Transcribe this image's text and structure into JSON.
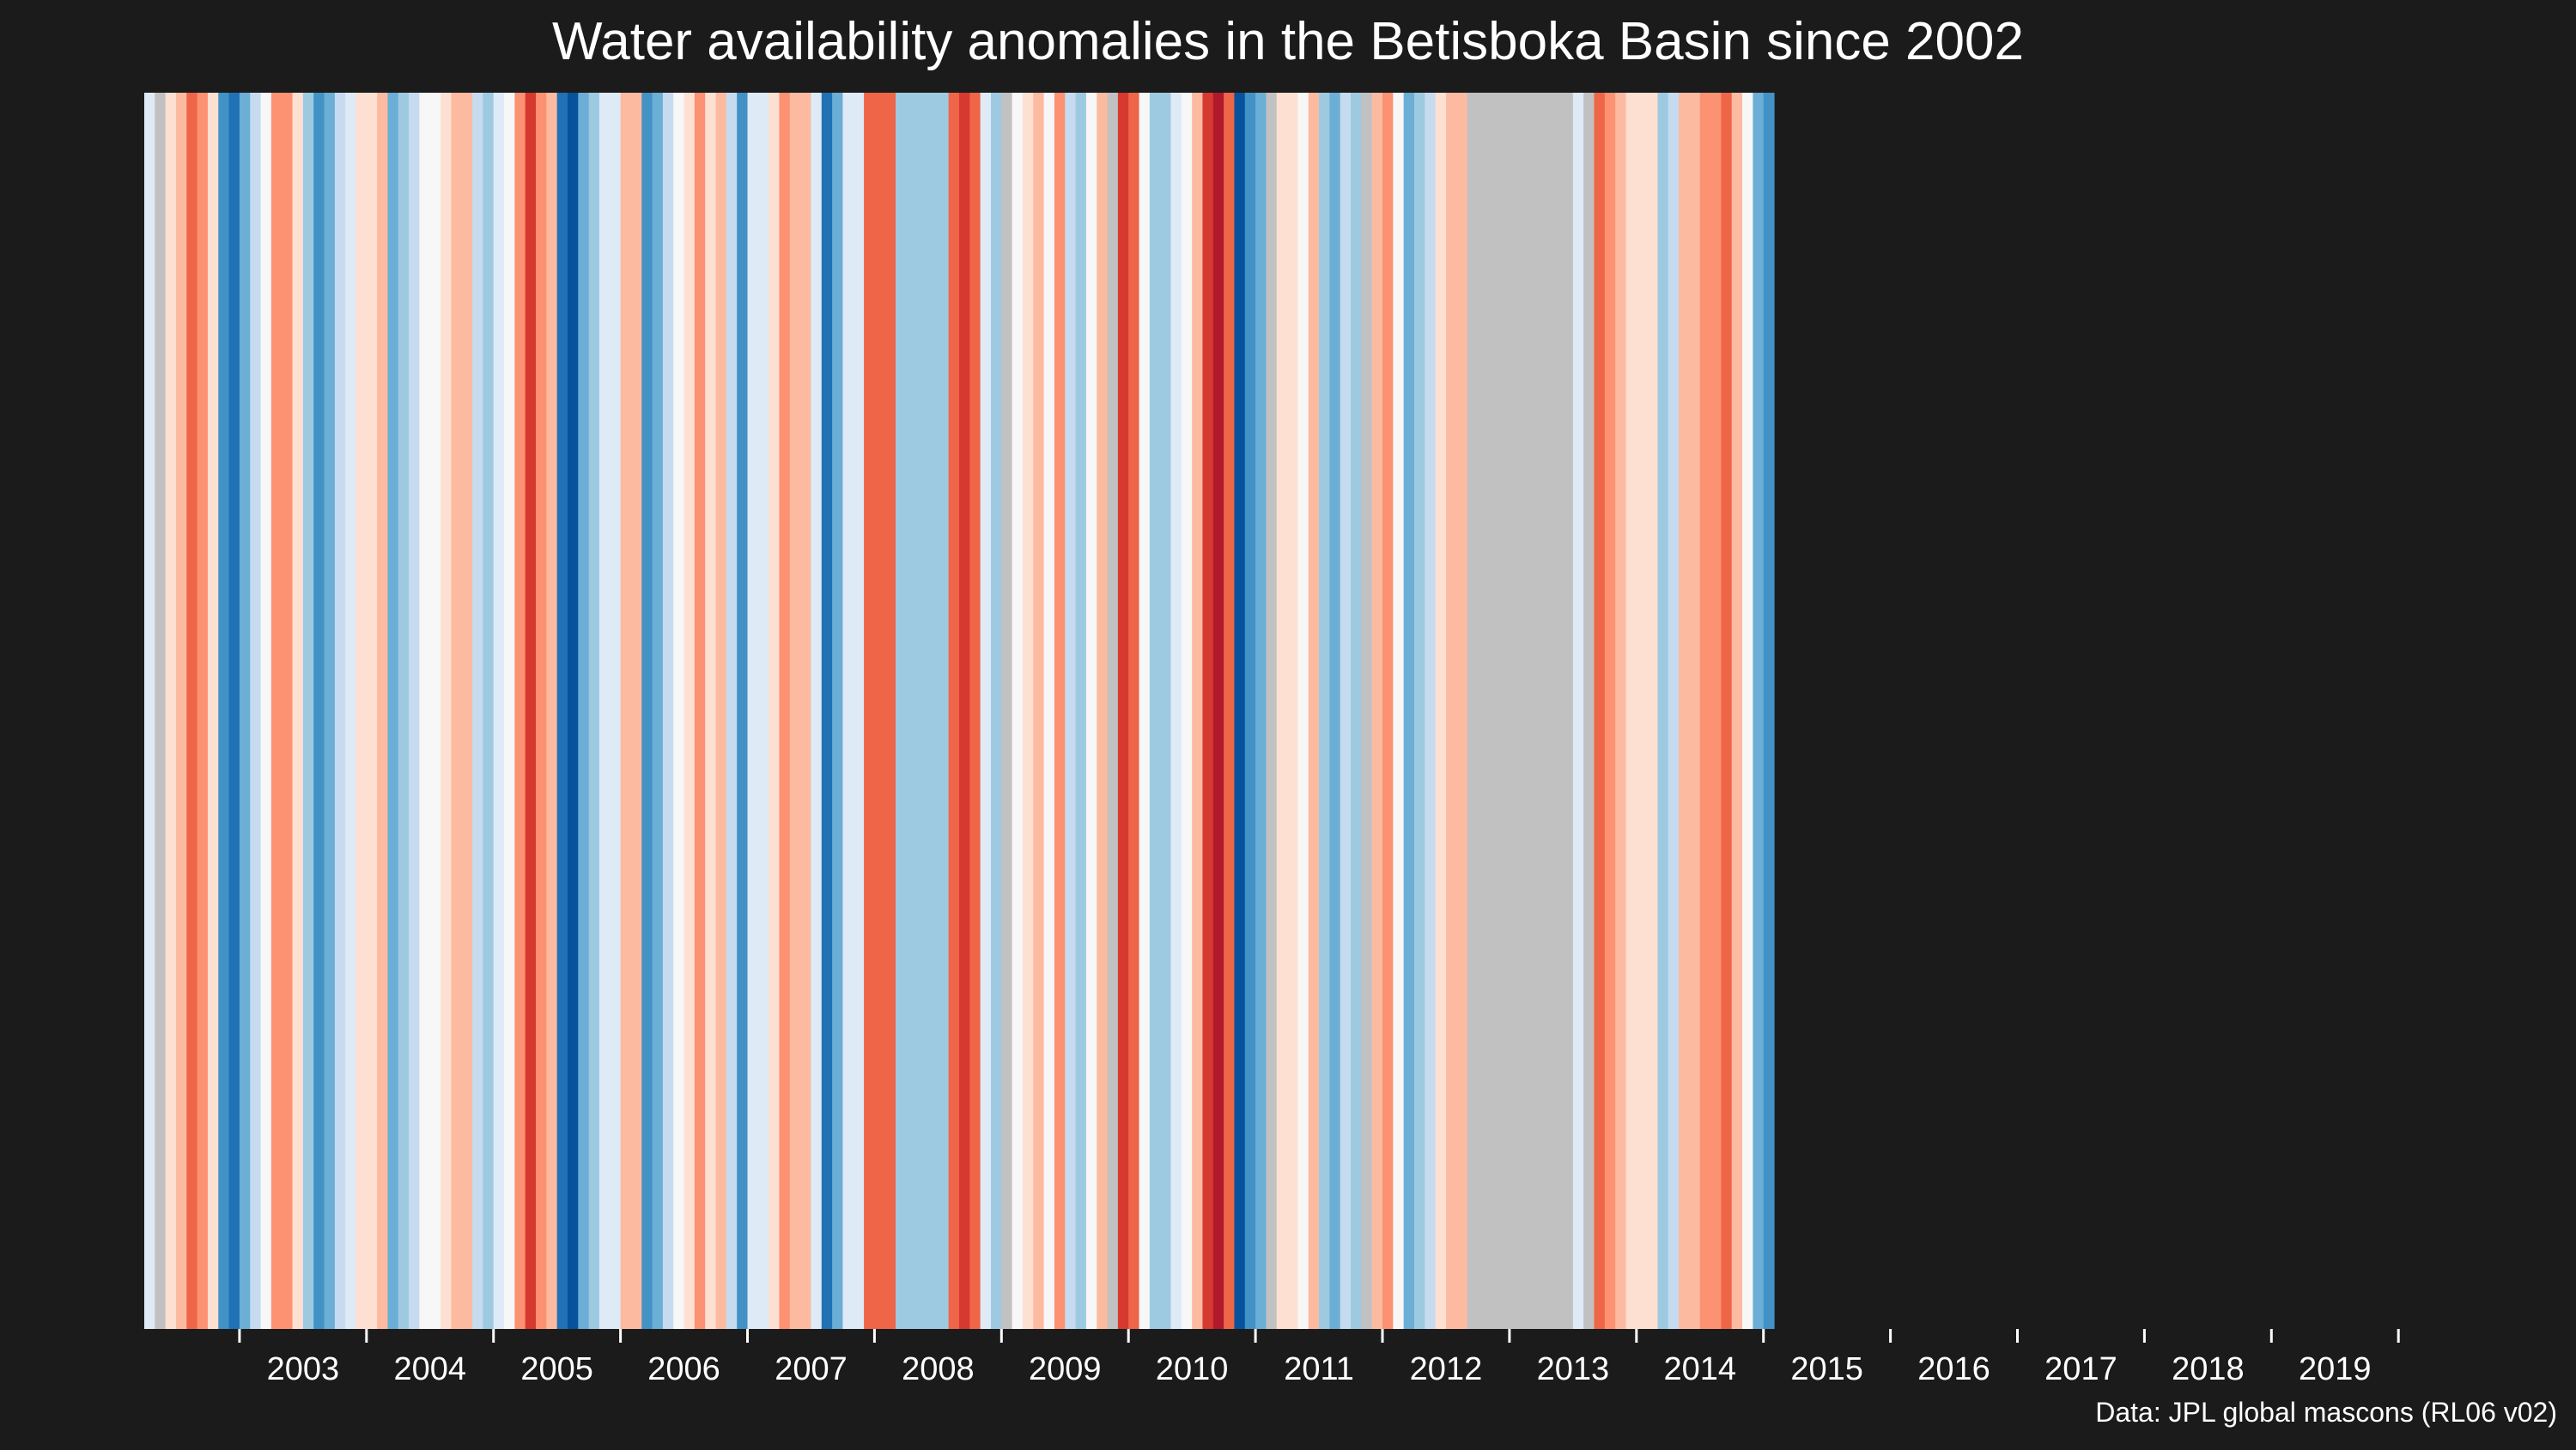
{
  "title": "Water availability anomalies in the Betisboka Basin since 2002",
  "source": "Data: JPL global mascons (RL06 v02)",
  "colors": {
    "background": "#1b1b1b",
    "missing": "#c1c1c1",
    "palette": [
      "#08306b",
      "#08519c",
      "#2171b5",
      "#4292c6",
      "#6baed6",
      "#9ecae1",
      "#c6dbef",
      "#deebf7",
      "#f7f7f7",
      "#fee0d2",
      "#fcbba1",
      "#fc9272",
      "#ef6548",
      "#d6392f",
      "#b2182b"
    ]
  },
  "chart_data": {
    "type": "heatmap",
    "style": "warming stripes",
    "title": "Water availability anomalies in the Betisboka Basin since 2002",
    "caption": "Data: JPL global mascons (RL06 v02)",
    "x_range": [
      2002.25,
      2020.33
    ],
    "step_months": 1,
    "tick_labels": [
      "2003",
      "2004",
      "2005",
      "2006",
      "2007",
      "2008",
      "2009",
      "2010",
      "2011",
      "2012",
      "2013",
      "2014",
      "2015",
      "2016",
      "2017",
      "2018",
      "2019"
    ],
    "value_range": [
      -7,
      7
    ],
    "values": [
      0,
      null,
      2,
      3,
      5,
      4,
      2,
      -4,
      -5,
      -3,
      -1,
      1,
      4,
      4,
      2,
      -2,
      -4,
      -3,
      -1,
      0,
      2,
      2,
      3,
      -3,
      -2,
      -1,
      1,
      1,
      2,
      3,
      3,
      -1,
      -2,
      0,
      1,
      4,
      6,
      4,
      3,
      -5,
      -6,
      -3,
      -2,
      0,
      0,
      3,
      3,
      -4,
      -3,
      -1,
      1,
      2,
      4,
      2,
      3,
      -1,
      -4,
      0,
      0,
      2,
      4,
      3,
      3,
      0,
      -5,
      -3,
      0,
      0,
      5,
      5,
      5,
      -2,
      -2,
      -2,
      -2,
      -2,
      5,
      6,
      5,
      0,
      -2,
      null,
      1,
      2,
      3,
      1,
      4,
      -1,
      -2,
      1,
      3,
      null,
      6,
      5,
      1,
      -2,
      -2,
      0,
      1,
      3,
      6,
      7,
      5,
      -6,
      -4,
      -3,
      null,
      2,
      2,
      1,
      3,
      -2,
      -3,
      -1,
      -2,
      null,
      3,
      4,
      1,
      -3,
      -2,
      -1,
      2,
      3,
      3,
      null,
      null,
      null,
      null,
      null,
      null,
      null,
      null,
      null,
      null,
      0,
      null,
      5,
      4,
      3,
      2,
      2,
      2,
      -2,
      -1,
      3,
      3,
      4,
      4,
      5,
      3,
      1,
      -3,
      -4
    ]
  }
}
